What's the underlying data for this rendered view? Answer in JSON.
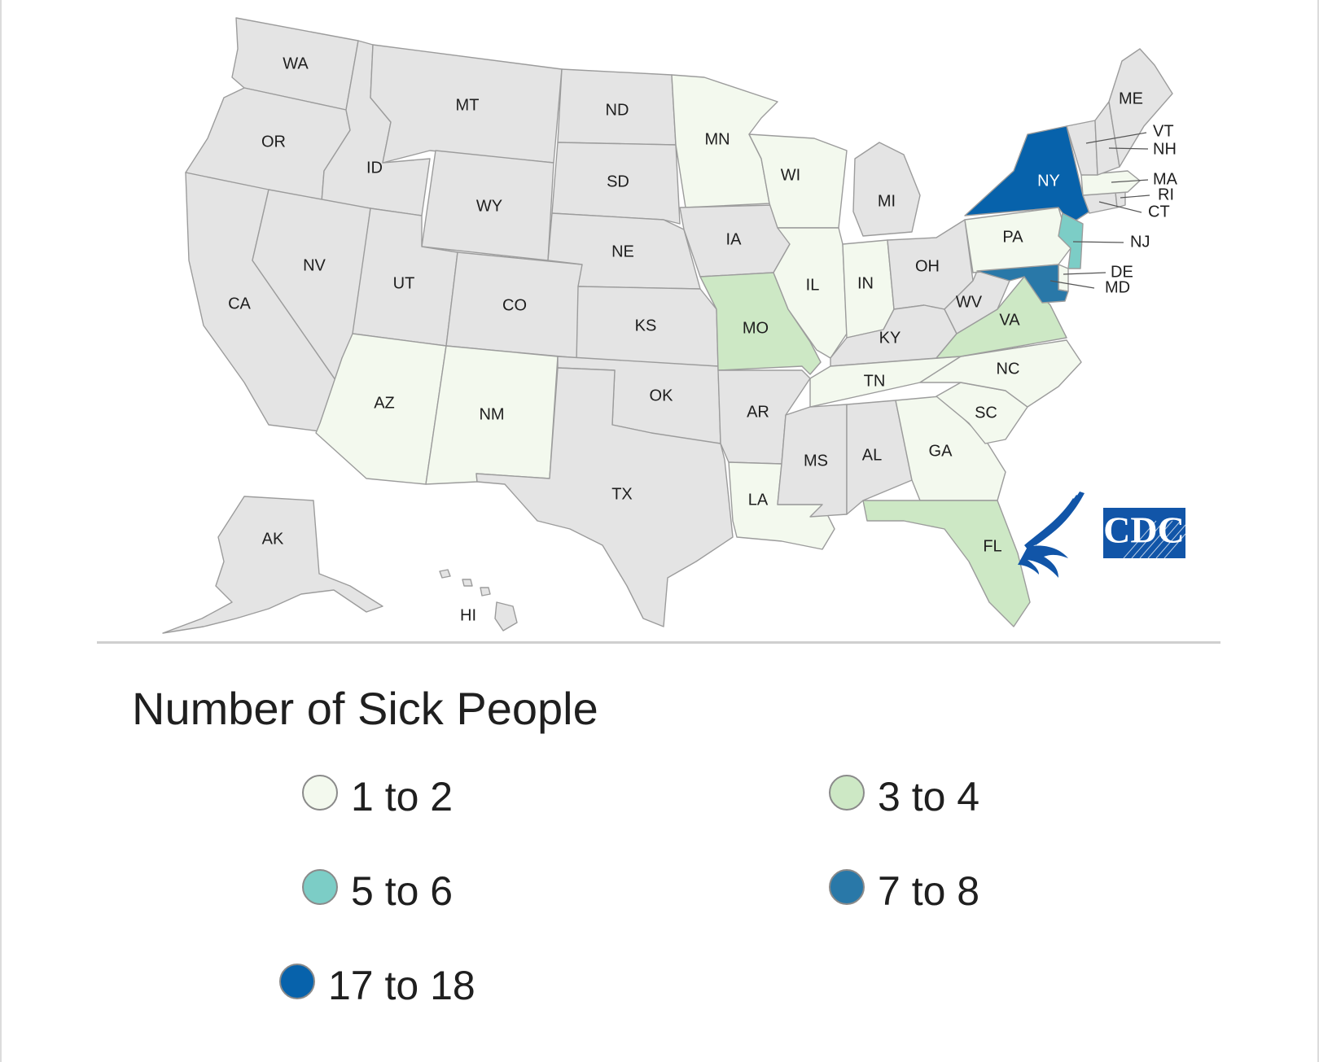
{
  "legend": {
    "title": "Number of Sick People",
    "items": [
      {
        "label": "1 to 2",
        "color": "#f3f9ee"
      },
      {
        "label": "3 to 4",
        "color": "#cde8c5"
      },
      {
        "label": "5 to 6",
        "color": "#7ccdc6"
      },
      {
        "label": "7 to 8",
        "color": "#2978a8"
      },
      {
        "label": "17 to 18",
        "color": "#0762ab"
      }
    ]
  },
  "colors": {
    "no_cases": "#e4e4e4",
    "border": "#9c9c9c",
    "cdc_blue": "#1155a8"
  },
  "logo": {
    "text": "CDC"
  },
  "states": {
    "WA": {
      "label": "WA",
      "category": "none"
    },
    "OR": {
      "label": "OR",
      "category": "none"
    },
    "CA": {
      "label": "CA",
      "category": "none"
    },
    "ID": {
      "label": "ID",
      "category": "none"
    },
    "NV": {
      "label": "NV",
      "category": "none"
    },
    "MT": {
      "label": "MT",
      "category": "none"
    },
    "WY": {
      "label": "WY",
      "category": "none"
    },
    "UT": {
      "label": "UT",
      "category": "none"
    },
    "AZ": {
      "label": "AZ",
      "category": "1 to 2"
    },
    "CO": {
      "label": "CO",
      "category": "none"
    },
    "NM": {
      "label": "NM",
      "category": "1 to 2"
    },
    "ND": {
      "label": "ND",
      "category": "none"
    },
    "SD": {
      "label": "SD",
      "category": "none"
    },
    "NE": {
      "label": "NE",
      "category": "none"
    },
    "KS": {
      "label": "KS",
      "category": "none"
    },
    "OK": {
      "label": "OK",
      "category": "none"
    },
    "TX": {
      "label": "TX",
      "category": "none"
    },
    "MN": {
      "label": "MN",
      "category": "1 to 2"
    },
    "IA": {
      "label": "IA",
      "category": "none"
    },
    "MO": {
      "label": "MO",
      "category": "3 to 4"
    },
    "AR": {
      "label": "AR",
      "category": "none"
    },
    "LA": {
      "label": "LA",
      "category": "1 to 2"
    },
    "WI": {
      "label": "WI",
      "category": "1 to 2"
    },
    "IL": {
      "label": "IL",
      "category": "1 to 2"
    },
    "MI": {
      "label": "MI",
      "category": "none"
    },
    "IN": {
      "label": "IN",
      "category": "1 to 2"
    },
    "OH": {
      "label": "OH",
      "category": "none"
    },
    "KY": {
      "label": "KY",
      "category": "none"
    },
    "TN": {
      "label": "TN",
      "category": "1 to 2"
    },
    "MS": {
      "label": "MS",
      "category": "none"
    },
    "AL": {
      "label": "AL",
      "category": "none"
    },
    "GA": {
      "label": "GA",
      "category": "1 to 2"
    },
    "FL": {
      "label": "FL",
      "category": "3 to 4"
    },
    "SC": {
      "label": "SC",
      "category": "1 to 2"
    },
    "NC": {
      "label": "NC",
      "category": "1 to 2"
    },
    "VA": {
      "label": "VA",
      "category": "3 to 4"
    },
    "WV": {
      "label": "WV",
      "category": "none"
    },
    "PA": {
      "label": "PA",
      "category": "1 to 2"
    },
    "NY": {
      "label": "NY",
      "category": "17 to 18"
    },
    "NJ": {
      "label": "NJ",
      "category": "5 to 6"
    },
    "DE": {
      "label": "DE",
      "category": "1 to 2"
    },
    "MD": {
      "label": "MD",
      "category": "7 to 8"
    },
    "CT": {
      "label": "CT",
      "category": "none"
    },
    "RI": {
      "label": "RI",
      "category": "none"
    },
    "MA": {
      "label": "MA",
      "category": "1 to 2"
    },
    "VT": {
      "label": "VT",
      "category": "none"
    },
    "NH": {
      "label": "NH",
      "category": "none"
    },
    "ME": {
      "label": "ME",
      "category": "none"
    },
    "AK": {
      "label": "AK",
      "category": "none"
    },
    "HI": {
      "label": "HI",
      "category": "none"
    }
  }
}
